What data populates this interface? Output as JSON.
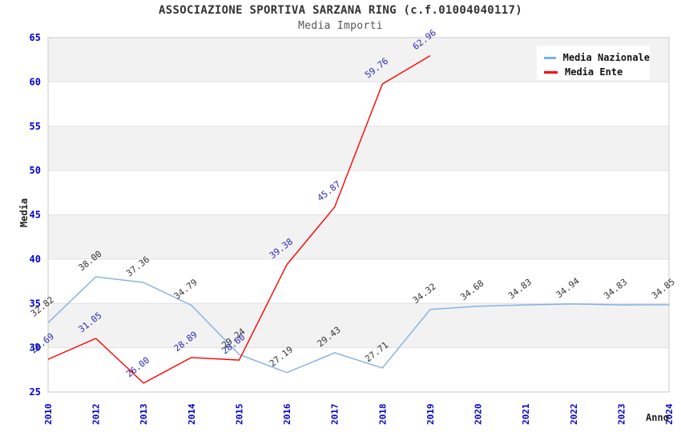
{
  "header": {
    "title": "ASSOCIAZIONE SPORTIVA SARZANA RING (c.f.01004040117)",
    "subtitle": "Media Importi"
  },
  "axes": {
    "y_label": "Media",
    "x_label": "Anno"
  },
  "legend": [
    {
      "label": "Media Nazionale",
      "color": "#7EB0E2"
    },
    {
      "label": "Media Ente",
      "color": "#FF0000"
    }
  ],
  "colors": {
    "band_fill": "#F2F2F2",
    "gridline": "#E0E0E0",
    "plot_border": "#C9C9C9",
    "tick_label": "#0000CC",
    "nazionale_line": "#7EB0E2",
    "ente_line": "#FF0000",
    "nazionale_data_label": "#333333",
    "ente_data_label": "#2A2AB5"
  },
  "chart_data": {
    "type": "line",
    "title": "ASSOCIAZIONE SPORTIVA SARZANA RING (c.f.01004040117)",
    "subtitle": "Media Importi",
    "xlabel": "Anno",
    "ylabel": "Media",
    "categories": [
      "2010",
      "2012",
      "2013",
      "2014",
      "2015",
      "2016",
      "2017",
      "2018",
      "2019",
      "2020",
      "2021",
      "2022",
      "2023",
      "2024"
    ],
    "series": [
      {
        "name": "Media Nazionale",
        "color": "#7EB0E2",
        "label_color": "#333333",
        "values": [
          32.82,
          38.0,
          37.36,
          34.79,
          29.24,
          27.19,
          29.43,
          27.71,
          34.32,
          34.68,
          34.83,
          34.94,
          34.83,
          34.85
        ],
        "labels": [
          "32.82",
          "38.00",
          "37.36",
          "34.79",
          "29.24",
          "27.19",
          "29.43",
          "27.71",
          "34.32",
          "34.68",
          "34.83",
          "34.94",
          "34.83",
          "34.85"
        ]
      },
      {
        "name": "Media Ente",
        "color": "#FF0000",
        "label_color": "#2A2AB5",
        "values": [
          28.69,
          31.05,
          26.0,
          28.89,
          28.6,
          39.38,
          45.87,
          59.76,
          62.96,
          null,
          null,
          null,
          null,
          null
        ],
        "labels": [
          "28.69",
          "31.05",
          "26.00",
          "28.89",
          "28.60",
          "39.38",
          "45.87",
          "59.76",
          "62.96",
          null,
          null,
          null,
          null,
          null
        ]
      }
    ],
    "ylim": [
      25,
      65
    ],
    "ytick_step": 5,
    "grid": true,
    "alternating_bands": true,
    "legend_position": "top-right"
  }
}
